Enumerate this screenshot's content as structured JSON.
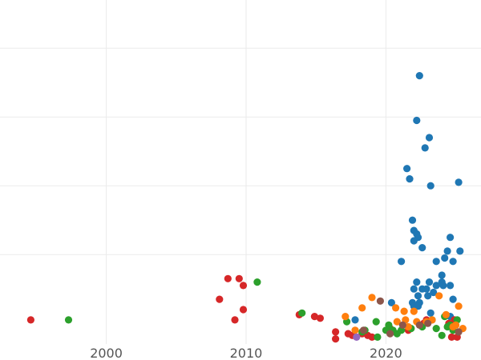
{
  "chart_data": {
    "type": "scatter",
    "title": "",
    "xlabel": "",
    "ylabel": "",
    "xlim": [
      1992.4,
      2026.8
    ],
    "ylim": [
      -0.6,
      9.4
    ],
    "x_ticks": [
      2000,
      2010,
      2020
    ],
    "y_gridlines": [
      2,
      4,
      6,
      8
    ],
    "grid": true,
    "legend": "none",
    "series": [
      {
        "name": "blue",
        "color": "#1f77b4",
        "points": [
          [
            2022.4,
            7.2
          ],
          [
            2022.2,
            5.9
          ],
          [
            2022.8,
            5.1
          ],
          [
            2023.1,
            5.4
          ],
          [
            2021.5,
            4.5
          ],
          [
            2021.7,
            4.2
          ],
          [
            2023.2,
            4.0
          ],
          [
            2025.2,
            4.1
          ],
          [
            2021.9,
            3.0
          ],
          [
            2022.0,
            2.7
          ],
          [
            2022.2,
            2.6
          ],
          [
            2022.3,
            2.5
          ],
          [
            2022.0,
            2.4
          ],
          [
            2024.6,
            2.5
          ],
          [
            2022.6,
            2.2
          ],
          [
            2024.4,
            2.1
          ],
          [
            2025.3,
            2.1
          ],
          [
            2021.1,
            1.8
          ],
          [
            2024.2,
            1.9
          ],
          [
            2023.6,
            1.8
          ],
          [
            2024.8,
            1.8
          ],
          [
            2024.0,
            1.4
          ],
          [
            2022.2,
            1.2
          ],
          [
            2023.1,
            1.2
          ],
          [
            2024.0,
            1.2
          ],
          [
            2022.0,
            1.0
          ],
          [
            2023.6,
            1.1
          ],
          [
            2022.6,
            1.0
          ],
          [
            2022.9,
            1.0
          ],
          [
            2023.4,
            0.9
          ],
          [
            2024.1,
            1.1
          ],
          [
            2024.6,
            1.1
          ],
          [
            2022.3,
            0.8
          ],
          [
            2023.0,
            0.8
          ],
          [
            2024.8,
            0.7
          ],
          [
            2021.9,
            0.6
          ],
          [
            2022.4,
            0.6
          ],
          [
            2020.4,
            0.6
          ],
          [
            2022.0,
            0.5
          ],
          [
            2022.3,
            0.5
          ],
          [
            2023.2,
            0.3
          ],
          [
            2024.6,
            0.2
          ],
          [
            2017.8,
            0.1
          ]
        ]
      },
      {
        "name": "red",
        "color": "#d62728",
        "points": [
          [
            1994.6,
            0.1
          ],
          [
            2008.7,
            1.3
          ],
          [
            2009.5,
            1.3
          ],
          [
            2009.8,
            1.1
          ],
          [
            2008.1,
            0.7
          ],
          [
            2009.8,
            0.4
          ],
          [
            2009.2,
            0.1
          ],
          [
            2013.8,
            0.25
          ],
          [
            2014.9,
            0.2
          ],
          [
            2015.3,
            0.15
          ],
          [
            2016.4,
            -0.25
          ],
          [
            2016.4,
            -0.45
          ],
          [
            2017.3,
            -0.3
          ],
          [
            2017.6,
            -0.35
          ],
          [
            2018.3,
            -0.3
          ],
          [
            2018.7,
            -0.35
          ],
          [
            2019.0,
            -0.4
          ],
          [
            2020.3,
            -0.15
          ],
          [
            2021.6,
            -0.2
          ],
          [
            2022.7,
            0.0
          ],
          [
            2022.9,
            0.1
          ],
          [
            2024.5,
            0.0
          ],
          [
            2024.9,
            0.1
          ],
          [
            2024.7,
            -0.4
          ],
          [
            2025.1,
            -0.4
          ]
        ]
      },
      {
        "name": "green",
        "color": "#2ca02c",
        "points": [
          [
            1997.3,
            0.1
          ],
          [
            2010.8,
            1.2
          ],
          [
            2014.0,
            0.3
          ],
          [
            2017.2,
            0.05
          ],
          [
            2018.5,
            -0.2
          ],
          [
            2019.3,
            0.05
          ],
          [
            2019.4,
            -0.4
          ],
          [
            2020.0,
            -0.2
          ],
          [
            2020.2,
            -0.05
          ],
          [
            2020.5,
            -0.2
          ],
          [
            2020.8,
            -0.3
          ],
          [
            2021.1,
            -0.2
          ],
          [
            2021.8,
            -0.15
          ],
          [
            2022.6,
            -0.1
          ],
          [
            2023.6,
            -0.15
          ],
          [
            2024.0,
            -0.35
          ],
          [
            2024.2,
            0.2
          ],
          [
            2024.4,
            -0.1
          ],
          [
            2024.6,
            -0.05
          ],
          [
            2025.1,
            0.1
          ],
          [
            2024.8,
            -0.2
          ],
          [
            2023.3,
            0.1
          ],
          [
            2018.3,
            -0.25
          ]
        ]
      },
      {
        "name": "orange",
        "color": "#ff7f0e",
        "points": [
          [
            2019.0,
            0.75
          ],
          [
            2018.3,
            0.45
          ],
          [
            2017.1,
            0.2
          ],
          [
            2020.7,
            0.45
          ],
          [
            2021.3,
            0.35
          ],
          [
            2022.0,
            0.35
          ],
          [
            2020.8,
            0.05
          ],
          [
            2021.4,
            0.1
          ],
          [
            2022.9,
            0.05
          ],
          [
            2023.3,
            0.1
          ],
          [
            2023.8,
            0.8
          ],
          [
            2024.3,
            0.25
          ],
          [
            2025.2,
            0.5
          ],
          [
            2024.8,
            -0.1
          ],
          [
            2025.5,
            -0.15
          ],
          [
            2017.8,
            -0.2
          ],
          [
            2021.6,
            -0.1
          ],
          [
            2022.2,
            0.05
          ],
          [
            2025.0,
            -0.05
          ]
        ]
      },
      {
        "name": "brown",
        "color": "#8c564b",
        "points": [
          [
            2019.6,
            0.65
          ],
          [
            2021.2,
            -0.05
          ],
          [
            2018.4,
            -0.2
          ],
          [
            2020.3,
            -0.3
          ],
          [
            2022.4,
            -0.05
          ],
          [
            2023.0,
            0.0
          ],
          [
            2025.2,
            -0.25
          ]
        ]
      },
      {
        "name": "purple",
        "color": "#9467bd",
        "points": [
          [
            2017.9,
            -0.4
          ]
        ]
      }
    ]
  }
}
